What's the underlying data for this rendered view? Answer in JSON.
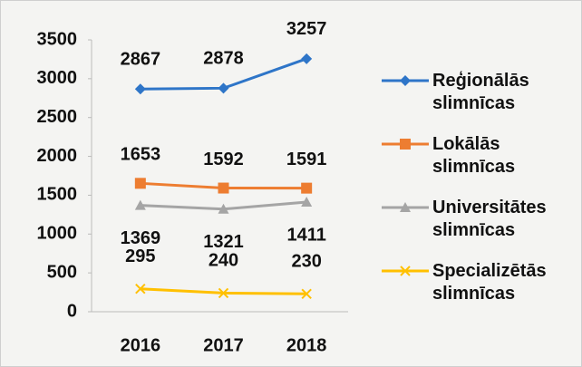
{
  "chart_data": {
    "type": "line",
    "categories": [
      "2016",
      "2017",
      "2018"
    ],
    "series": [
      {
        "name": "Reģionālās slimnīcas",
        "color": "#2e75c8",
        "marker": "diamond",
        "values": [
          2867,
          2878,
          3257
        ]
      },
      {
        "name": "Lokālās slimnīcas",
        "color": "#ed7d31",
        "marker": "square",
        "values": [
          1653,
          1592,
          1591
        ]
      },
      {
        "name": "Universitātes slimnīcas",
        "color": "#a5a5a5",
        "marker": "triangle",
        "values": [
          1369,
          1321,
          1411
        ]
      },
      {
        "name": "Specializētās slimnīcas",
        "color": "#ffc000",
        "marker": "x",
        "values": [
          295,
          240,
          230
        ]
      }
    ],
    "ylim": [
      0,
      3500
    ],
    "yticks": [
      0,
      500,
      1000,
      1500,
      2000,
      2500,
      3000,
      3500
    ],
    "legend": "right"
  }
}
